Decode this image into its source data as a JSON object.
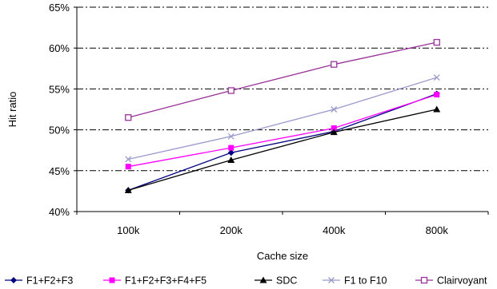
{
  "chart_data": {
    "type": "line",
    "title": "",
    "xlabel": "Cache size",
    "ylabel": "Hit ratio",
    "categories": [
      "100k",
      "200k",
      "400k",
      "800k"
    ],
    "ylim": [
      40,
      65
    ],
    "yticks": [
      "40%",
      "45%",
      "50%",
      "55%",
      "60%",
      "65%"
    ],
    "grid": "horizontal dash-dot",
    "legend_position": "bottom",
    "series": [
      {
        "name": "F1+F2+F3",
        "values": [
          42.6,
          47.2,
          49.8,
          54.4
        ],
        "color": "#000080",
        "marker": "diamond"
      },
      {
        "name": "F1+F2+F3+F4+F5",
        "values": [
          45.5,
          47.8,
          50.2,
          54.3
        ],
        "color": "#ff00ff",
        "marker": "square"
      },
      {
        "name": "SDC",
        "values": [
          42.6,
          46.3,
          49.7,
          52.5
        ],
        "color": "#000000",
        "marker": "triangle"
      },
      {
        "name": "F1 to F10",
        "values": [
          46.4,
          49.2,
          52.5,
          56.4
        ],
        "color": "#9999cc",
        "marker": "x"
      },
      {
        "name": "Clairvoyant",
        "values": [
          51.5,
          54.8,
          58.0,
          60.7
        ],
        "color": "#993399",
        "marker": "square-open"
      }
    ]
  }
}
